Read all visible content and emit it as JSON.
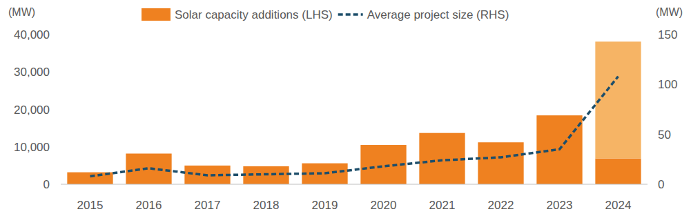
{
  "chart_data": {
    "type": "bar",
    "ylabel": "(MW)",
    "y2label": "(MW)",
    "categories": [
      "2015",
      "2016",
      "2017",
      "2018",
      "2019",
      "2020",
      "2021",
      "2022",
      "2023",
      "2024"
    ],
    "series": [
      {
        "name": "Solar capacity additions (LHS)",
        "type": "bar",
        "color": "#ef8120",
        "values": [
          3200,
          8200,
          5000,
          4800,
          5600,
          10500,
          13700,
          11200,
          18400,
          6900
        ]
      },
      {
        "type": "bar",
        "color": "#f6b465",
        "values": [
          null,
          null,
          null,
          null,
          null,
          null,
          null,
          null,
          null,
          31200
        ]
      },
      {
        "name": "Average project size (RHS)",
        "type": "line",
        "axis": "y2",
        "color": "#1d4e6a",
        "line_style": "dashed",
        "values": [
          8,
          16,
          9,
          10,
          11,
          18,
          24,
          27,
          35,
          108
        ]
      }
    ],
    "stacked": true,
    "ylim": [
      0,
      40000
    ],
    "yticks": [
      0,
      {
        "value": 10000,
        "label": "10,000"
      },
      {
        "value": 20000,
        "label": "20,000"
      },
      {
        "value": 30000,
        "label": "30,000"
      },
      {
        "value": 40000,
        "label": "40,000"
      }
    ],
    "y2lim": [
      0,
      150
    ],
    "y2ticks": [
      0,
      50,
      100,
      150
    ],
    "grid": false,
    "legend": "top"
  }
}
